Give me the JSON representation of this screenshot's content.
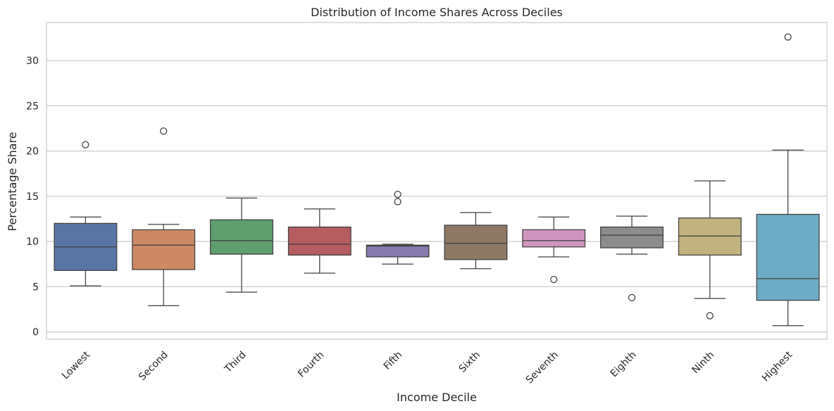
{
  "chart_data": {
    "type": "boxplot",
    "title": "Distribution of Income Shares Across Deciles",
    "xlabel": "Income Decile",
    "ylabel": "Percentage Share",
    "ylim": [
      -0.8,
      34.2
    ],
    "yticks": [
      0,
      5,
      10,
      15,
      20,
      25,
      30
    ],
    "grid": "horizontal",
    "categories": [
      "Lowest",
      "Second",
      "Third",
      "Fourth",
      "Fifth",
      "Sixth",
      "Seventh",
      "Eighth",
      "Ninth",
      "Highest"
    ],
    "colors": [
      "#5875a4",
      "#cc8963",
      "#5f9e6e",
      "#b55d60",
      "#857aab",
      "#8d7866",
      "#d095bf",
      "#8c8c8c",
      "#c1b37f",
      "#6dacc4"
    ],
    "series": [
      {
        "category": "Lowest",
        "whisker_low": 5.1,
        "q1": 6.8,
        "median": 9.4,
        "q3": 12.0,
        "whisker_high": 12.7,
        "outliers": [
          20.7
        ]
      },
      {
        "category": "Second",
        "whisker_low": 2.9,
        "q1": 6.9,
        "median": 9.6,
        "q3": 11.3,
        "whisker_high": 11.9,
        "outliers": [
          22.2
        ]
      },
      {
        "category": "Third",
        "whisker_low": 4.4,
        "q1": 8.6,
        "median": 10.1,
        "q3": 12.4,
        "whisker_high": 14.8,
        "outliers": []
      },
      {
        "category": "Fourth",
        "whisker_low": 6.5,
        "q1": 8.5,
        "median": 9.7,
        "q3": 11.6,
        "whisker_high": 13.6,
        "outliers": []
      },
      {
        "category": "Fifth",
        "whisker_low": 7.5,
        "q1": 8.3,
        "median": 9.5,
        "q3": 9.6,
        "whisker_high": 9.7,
        "outliers": [
          15.2,
          14.4
        ]
      },
      {
        "category": "Sixth",
        "whisker_low": 7.0,
        "q1": 8.0,
        "median": 9.8,
        "q3": 11.8,
        "whisker_high": 13.2,
        "outliers": []
      },
      {
        "category": "Seventh",
        "whisker_low": 8.3,
        "q1": 9.4,
        "median": 10.1,
        "q3": 11.3,
        "whisker_high": 12.7,
        "outliers": [
          5.8
        ]
      },
      {
        "category": "Eighth",
        "whisker_low": 8.6,
        "q1": 9.3,
        "median": 10.7,
        "q3": 11.6,
        "whisker_high": 12.8,
        "outliers": [
          3.8
        ]
      },
      {
        "category": "Ninth",
        "whisker_low": 3.7,
        "q1": 8.5,
        "median": 10.6,
        "q3": 12.6,
        "whisker_high": 16.7,
        "outliers": [
          1.8
        ]
      },
      {
        "category": "Highest",
        "whisker_low": 0.7,
        "q1": 3.5,
        "median": 5.9,
        "q3": 13.0,
        "whisker_high": 20.1,
        "outliers": [
          32.6
        ]
      }
    ]
  }
}
